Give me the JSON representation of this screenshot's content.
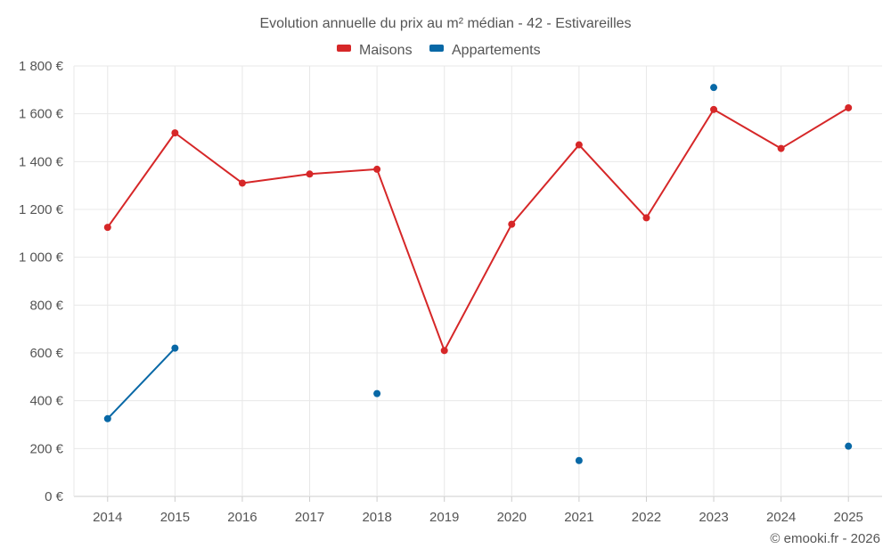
{
  "chart_data": {
    "type": "line",
    "title": "Evolution annuelle du prix au m² médian - 42 - Estivareilles",
    "categories": [
      "2014",
      "2015",
      "2016",
      "2017",
      "2018",
      "2019",
      "2020",
      "2021",
      "2022",
      "2023",
      "2024",
      "2025"
    ],
    "series": [
      {
        "name": "Maisons",
        "color": "#d62728",
        "values": [
          1125,
          1520,
          1310,
          1348,
          1368,
          610,
          1138,
          1470,
          1165,
          1618,
          1455,
          1625
        ]
      },
      {
        "name": "Appartements",
        "color": "#0868a6",
        "values": [
          325,
          620,
          null,
          null,
          430,
          null,
          null,
          150,
          null,
          1710,
          null,
          210
        ]
      }
    ],
    "ylim": [
      0,
      1800
    ],
    "yticks": [
      0,
      200,
      400,
      600,
      800,
      1000,
      1200,
      1400,
      1600,
      1800
    ],
    "ytick_labels": [
      "0 €",
      "200 €",
      "400 €",
      "600 €",
      "800 €",
      "1 000 €",
      "1 200 €",
      "1 400 €",
      "1 600 €",
      "1 800 €"
    ],
    "xlabel": "",
    "ylabel": "",
    "legend_position": "top-center",
    "grid": true
  },
  "credit": "© emooki.fr - 2026"
}
